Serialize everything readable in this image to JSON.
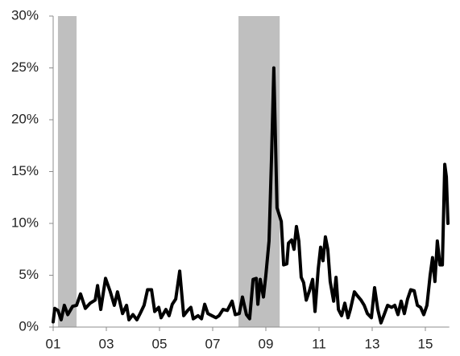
{
  "chart_data": {
    "type": "line",
    "color": "#000000",
    "shade_color": "#bfbfbf",
    "shaded": [
      [
        1.18,
        1.88
      ],
      [
        7.97,
        9.52
      ]
    ],
    "xlim": [
      1,
      15.9
    ],
    "xticks": [
      {
        "value": 1,
        "label": "01"
      },
      {
        "value": 3,
        "label": "03"
      },
      {
        "value": 5,
        "label": "05"
      },
      {
        "value": 7,
        "label": "07"
      },
      {
        "value": 9,
        "label": "09"
      },
      {
        "value": 11,
        "label": "11"
      },
      {
        "value": 13,
        "label": "13"
      },
      {
        "value": 15,
        "label": "15"
      }
    ],
    "ylim": [
      0,
      30
    ],
    "yticks": [
      {
        "value": 0,
        "label": "0%"
      },
      {
        "value": 5,
        "label": "5%"
      },
      {
        "value": 10,
        "label": "10%"
      },
      {
        "value": 15,
        "label": "15%"
      },
      {
        "value": 20,
        "label": "20%"
      },
      {
        "value": 25,
        "label": "25%"
      },
      {
        "value": 30,
        "label": "30%"
      }
    ],
    "x": [
      1.0,
      1.06,
      1.18,
      1.3,
      1.42,
      1.55,
      1.73,
      1.88,
      2.03,
      2.21,
      2.39,
      2.58,
      2.67,
      2.79,
      2.97,
      3.15,
      3.3,
      3.42,
      3.61,
      3.76,
      3.85,
      4.0,
      4.15,
      4.27,
      4.42,
      4.55,
      4.7,
      4.82,
      4.97,
      5.06,
      5.24,
      5.36,
      5.48,
      5.61,
      5.76,
      5.91,
      6.06,
      6.18,
      6.27,
      6.45,
      6.58,
      6.7,
      6.82,
      6.97,
      7.12,
      7.24,
      7.39,
      7.55,
      7.73,
      7.85,
      8.0,
      8.12,
      8.27,
      8.39,
      8.52,
      8.64,
      8.7,
      8.79,
      8.91,
      9.0,
      9.12,
      9.21,
      9.3,
      9.42,
      9.58,
      9.67,
      9.79,
      9.85,
      9.97,
      10.06,
      10.15,
      10.24,
      10.33,
      10.42,
      10.52,
      10.64,
      10.76,
      10.85,
      10.97,
      11.06,
      11.15,
      11.24,
      11.33,
      11.42,
      11.55,
      11.64,
      11.73,
      11.85,
      11.97,
      12.09,
      12.18,
      12.33,
      12.45,
      12.58,
      12.7,
      12.82,
      12.97,
      13.09,
      13.21,
      13.33,
      13.45,
      13.58,
      13.73,
      13.85,
      13.97,
      14.09,
      14.21,
      14.33,
      14.45,
      14.58,
      14.7,
      14.82,
      14.94,
      15.06,
      15.18,
      15.27,
      15.36,
      15.45,
      15.55,
      15.64,
      15.73,
      15.79,
      15.85
    ],
    "values": [
      0.5,
      1.8,
      1.6,
      0.7,
      2.1,
      1.2,
      2.0,
      2.1,
      3.2,
      1.8,
      2.3,
      2.6,
      4.0,
      1.7,
      4.7,
      3.4,
      2.1,
      3.4,
      1.3,
      2.1,
      0.7,
      1.2,
      0.7,
      1.3,
      2.1,
      3.6,
      3.6,
      1.5,
      1.9,
      0.9,
      1.7,
      1.1,
      2.2,
      2.7,
      5.4,
      1.1,
      1.6,
      1.9,
      0.8,
      1.1,
      0.8,
      2.2,
      1.3,
      1.1,
      0.9,
      1.1,
      1.7,
      1.6,
      2.5,
      1.2,
      1.3,
      2.9,
      1.2,
      0.8,
      4.6,
      4.7,
      2.2,
      4.6,
      2.9,
      5.0,
      8.3,
      16.0,
      25.0,
      11.5,
      10.2,
      6.0,
      6.1,
      8.1,
      8.4,
      7.5,
      9.7,
      8.3,
      4.8,
      4.3,
      2.6,
      3.5,
      4.6,
      1.5,
      5.6,
      7.7,
      6.4,
      8.7,
      7.5,
      4.4,
      2.5,
      4.8,
      1.7,
      1.1,
      2.3,
      0.9,
      1.7,
      3.4,
      3.0,
      2.6,
      2.1,
      1.3,
      0.9,
      3.8,
      1.7,
      0.4,
      1.2,
      2.1,
      1.9,
      2.1,
      1.2,
      2.5,
      1.3,
      2.7,
      3.6,
      3.5,
      2.1,
      1.9,
      1.2,
      2.1,
      5.0,
      6.7,
      4.4,
      8.3,
      6.0,
      6.0,
      15.7,
      14.5,
      10.0
    ]
  }
}
